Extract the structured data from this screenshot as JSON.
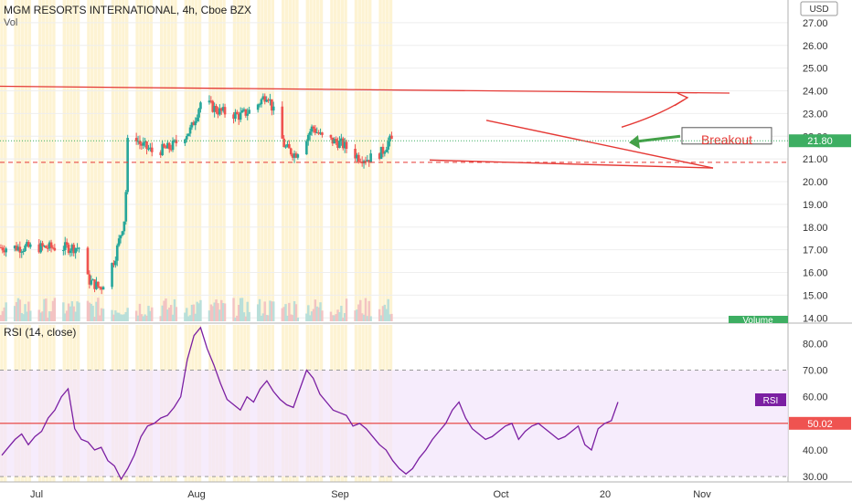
{
  "header": {
    "title": "MGM RESORTS INTERNATIONAL, 4h, Cboe BZX",
    "vol_label": "Vol",
    "currency": "USD"
  },
  "price_axis": {
    "ticks": [
      "27.00",
      "26.00",
      "25.00",
      "24.00",
      "23.00",
      "22.00",
      "21.00",
      "20.00",
      "19.00",
      "18.00",
      "17.00",
      "16.00",
      "15.00",
      "14.00"
    ],
    "last_price": "21.80",
    "volume_tag": "Volume"
  },
  "rsi": {
    "label": "RSI (14, close)",
    "ticks": [
      "80.00",
      "70.00",
      "60.00",
      "50.00",
      "40.00",
      "30.00"
    ],
    "tag": "RSI",
    "level_tag": "50.02"
  },
  "time_axis": {
    "labels": [
      "Jul",
      "Aug",
      "Sep",
      "Oct",
      "20",
      "Nov"
    ]
  },
  "annotations": {
    "breakout": "Breakout"
  },
  "colors": {
    "up": "#26a69a",
    "down": "#ef5350",
    "session_band": "#fdf3d3",
    "trend_line": "#e53935",
    "rsi_line": "#7b1fa2",
    "rsi_band": "#f3e5fb",
    "last_price_tag": "#3dae62",
    "rsi_tag": "#7b1fa2",
    "fifty_tag": "#ef5350"
  },
  "chart_data": [
    {
      "type": "candlestick",
      "title": "MGM RESORTS INTERNATIONAL, 4h, Cboe BZX",
      "ylim": [
        13.85,
        28.0
      ],
      "x_labels": [
        "Jul",
        "Aug",
        "Sep",
        "Oct",
        "20",
        "Nov"
      ],
      "close_path": [
        {
          "date": "Jun 29",
          "close": 17.1
        },
        {
          "date": "Jul 2",
          "close": 16.6
        },
        {
          "date": "Jul 7",
          "close": 16.0
        },
        {
          "date": "Jul 10",
          "close": 16.3
        },
        {
          "date": "Jul 14",
          "close": 16.5
        },
        {
          "date": "Jul 17",
          "close": 17.9
        },
        {
          "date": "Jul 22",
          "close": 16.4
        },
        {
          "date": "Jul 27",
          "close": 15.6
        },
        {
          "date": "Jul 30",
          "close": 15.3
        },
        {
          "date": "Aug 3",
          "close": 16.6
        },
        {
          "date": "Aug 6",
          "close": 18.5
        },
        {
          "date": "Aug 7",
          "close": 22.8
        },
        {
          "date": "Aug 10",
          "close": 21.7
        },
        {
          "date": "Aug 14",
          "close": 21.3
        },
        {
          "date": "Aug 19",
          "close": 21.5
        },
        {
          "date": "Aug 25",
          "close": 22.3
        },
        {
          "date": "Aug 28",
          "close": 23.6
        },
        {
          "date": "Sep 2",
          "close": 23.1
        },
        {
          "date": "Sep 8",
          "close": 22.9
        },
        {
          "date": "Sep 12",
          "close": 23.2
        },
        {
          "date": "Sep 16",
          "close": 23.9
        },
        {
          "date": "Sep 21",
          "close": 21.5
        },
        {
          "date": "Sep 24",
          "close": 21.2
        },
        {
          "date": "Sep 29",
          "close": 22.4
        },
        {
          "date": "Oct 2",
          "close": 21.9
        },
        {
          "date": "Oct 7",
          "close": 21.7
        },
        {
          "date": "Oct 12",
          "close": 21.1
        },
        {
          "date": "Oct 15",
          "close": 21.0
        },
        {
          "date": "Oct 19",
          "close": 21.3
        },
        {
          "date": "Oct 21",
          "close": 21.8
        }
      ],
      "levels": {
        "resistance": 24.0,
        "support": 20.85,
        "last": 21.8
      },
      "annotation": "Breakout"
    },
    {
      "type": "line",
      "title": "RSI (14, close)",
      "ylim": [
        28,
        87
      ],
      "reference_lines": [
        70,
        50.02,
        30
      ],
      "series": [
        {
          "name": "RSI",
          "values": [
            38,
            41,
            44,
            46,
            42,
            45,
            47,
            52,
            55,
            60,
            63,
            48,
            44,
            43,
            40,
            41,
            36,
            34,
            29,
            33,
            38,
            45,
            49,
            50,
            52,
            53,
            56,
            60,
            74,
            83,
            86,
            78,
            72,
            65,
            59,
            57,
            55,
            60,
            58,
            63,
            66,
            62,
            59,
            57,
            56,
            63,
            70,
            67,
            61,
            58,
            55,
            54,
            53,
            49,
            50,
            48,
            45,
            42,
            40,
            36,
            33,
            31,
            33,
            37,
            40,
            44,
            47,
            50,
            55,
            58,
            52,
            48,
            46,
            44,
            45,
            47,
            49,
            50,
            44,
            47,
            49,
            50,
            48,
            46,
            44,
            45,
            47,
            49,
            42,
            40,
            48,
            50,
            51,
            58
          ]
        }
      ]
    }
  ]
}
